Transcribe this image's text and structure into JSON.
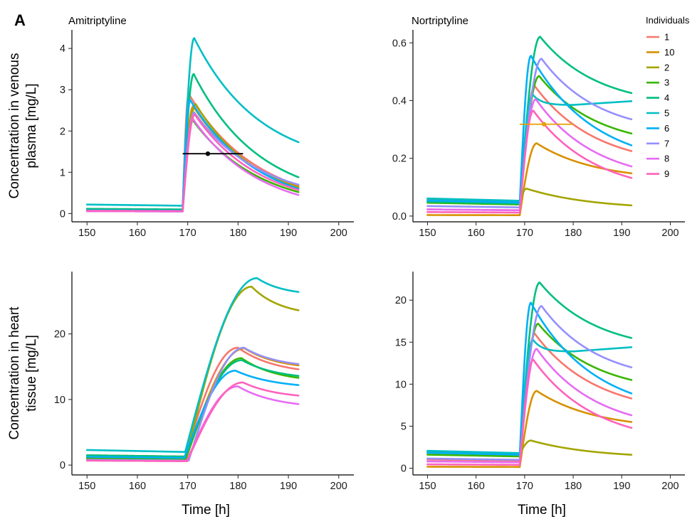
{
  "panel_label": "A",
  "legend": {
    "title": "Individuals",
    "entries": [
      {
        "label": "1",
        "color": "#F8766D"
      },
      {
        "label": "10",
        "color": "#D89000"
      },
      {
        "label": "2",
        "color": "#A3A500"
      },
      {
        "label": "3",
        "color": "#39B600"
      },
      {
        "label": "4",
        "color": "#00BF7D"
      },
      {
        "label": "5",
        "color": "#00BFC4"
      },
      {
        "label": "6",
        "color": "#00B0F6"
      },
      {
        "label": "7",
        "color": "#9590FF"
      },
      {
        "label": "8",
        "color": "#E76BF3"
      },
      {
        "label": "9",
        "color": "#FF62BC"
      }
    ]
  },
  "chart_data": [
    {
      "type": "line",
      "title": "Amitriptyline",
      "xlabel": "",
      "ylabel": "Concentration in venous\nplasma [mg/L]",
      "xlim": [
        147,
        203
      ],
      "ylim": [
        -0.2,
        4.45
      ],
      "xticks": [
        150,
        160,
        170,
        180,
        190,
        200
      ],
      "yticks": [
        0,
        1,
        2,
        3,
        4
      ],
      "curve": {
        "t_start": 150,
        "t_end": 192,
        "t_dose": 169
      },
      "series": [
        {
          "name": "1",
          "color": "#F8766D",
          "base": 0.08,
          "tmax": 170.2,
          "cmax": 2.9,
          "cend": 0.68
        },
        {
          "name": "10",
          "color": "#D89000",
          "base": 0.06,
          "tmax": 171.1,
          "cmax": 2.6,
          "cend": 0.65
        },
        {
          "name": "2",
          "color": "#A3A500",
          "base": 0.07,
          "tmax": 171.6,
          "cmax": 2.65,
          "cend": 0.62
        },
        {
          "name": "3",
          "color": "#39B600",
          "base": 0.06,
          "tmax": 170.9,
          "cmax": 2.28,
          "cend": 0.52
        },
        {
          "name": "4",
          "color": "#00BF7D",
          "base": 0.1,
          "tmax": 171.2,
          "cmax": 3.38,
          "cend": 0.88
        },
        {
          "name": "5",
          "color": "#00BFC4",
          "base": 0.19,
          "tmax": 171.3,
          "cmax": 4.25,
          "cend": 1.73
        },
        {
          "name": "6",
          "color": "#00B0F6",
          "base": 0.07,
          "tmax": 170.5,
          "cmax": 2.75,
          "cend": 0.6
        },
        {
          "name": "7",
          "color": "#9590FF",
          "base": 0.05,
          "tmax": 171.3,
          "cmax": 2.45,
          "cend": 0.7
        },
        {
          "name": "8",
          "color": "#E76BF3",
          "base": 0.05,
          "tmax": 171.0,
          "cmax": 2.3,
          "cend": 0.45
        },
        {
          "name": "9",
          "color": "#FF62BC",
          "base": 0.06,
          "tmax": 171.4,
          "cmax": 2.4,
          "cend": 0.57
        }
      ],
      "observation": {
        "x": 174,
        "y": 1.45,
        "xmin": 169,
        "xmax": 181,
        "color": "#000000"
      }
    },
    {
      "type": "line",
      "title": "Nortriptyline",
      "xlabel": "",
      "ylabel": "",
      "xlim": [
        147,
        203
      ],
      "ylim": [
        -0.02,
        0.645
      ],
      "xticks": [
        150,
        160,
        170,
        180,
        190,
        200
      ],
      "yticks": [
        0.0,
        0.2,
        0.4,
        0.6
      ],
      "ytick_labels": [
        "0.0",
        "0.2",
        "0.4",
        "0.6"
      ],
      "curve": {
        "t_start": 150,
        "t_end": 192,
        "t_dose": 169
      },
      "series": [
        {
          "name": "1",
          "color": "#F8766D",
          "base": 0.02,
          "tmax": 172.1,
          "cmax": 0.45,
          "cend": 0.225
        },
        {
          "name": "10",
          "color": "#D89000",
          "base": 0.003,
          "tmax": 172.5,
          "cmax": 0.252,
          "cend": 0.148
        },
        {
          "name": "2",
          "color": "#A3A500",
          "base": 0.05,
          "tmax": 170.4,
          "cmax": 0.095,
          "cend": 0.037
        },
        {
          "name": "3",
          "color": "#39B600",
          "base": 0.04,
          "tmax": 173.0,
          "cmax": 0.485,
          "cend": 0.286
        },
        {
          "name": "4",
          "color": "#00BF7D",
          "base": 0.043,
          "tmax": 173.2,
          "cmax": 0.621,
          "cend": 0.426
        },
        {
          "name": "5",
          "color": "#00BFC4",
          "base": 0.053,
          "tmax": 171.7,
          "cmax": 0.42,
          "cend": 0.398,
          "trough": 0.385,
          "ttrough": 180
        },
        {
          "name": "6",
          "color": "#00B0F6",
          "base": 0.047,
          "tmax": 171.3,
          "cmax": 0.555,
          "cend": 0.245
        },
        {
          "name": "7",
          "color": "#9590FF",
          "base": 0.03,
          "tmax": 173.5,
          "cmax": 0.545,
          "cend": 0.335
        },
        {
          "name": "8",
          "color": "#E76BF3",
          "base": 0.02,
          "tmax": 172.3,
          "cmax": 0.405,
          "cend": 0.172
        },
        {
          "name": "9",
          "color": "#FF62BC",
          "base": 0.012,
          "tmax": 171.8,
          "cmax": 0.365,
          "cend": 0.132
        }
      ],
      "observation": {
        "x": 174,
        "y": 0.318,
        "xmin": 169,
        "xmax": 180,
        "color": "#E5A000"
      }
    },
    {
      "type": "line",
      "title": "",
      "xlabel": "Time [h]",
      "ylabel": "Concentration in heart\ntissue [mg/L]",
      "xlim": [
        147,
        203
      ],
      "ylim": [
        -1.5,
        29.5
      ],
      "xticks": [
        150,
        160,
        170,
        180,
        190,
        200
      ],
      "yticks": [
        0,
        10,
        20
      ],
      "curve": {
        "t_start": 150,
        "t_end": 192,
        "t_dose": 169
      },
      "series": [
        {
          "name": "1",
          "color": "#F8766D",
          "base": 0.9,
          "tmax": 180.0,
          "cmax": 17.9,
          "cend": 14.6,
          "lag": 0.3
        },
        {
          "name": "10",
          "color": "#D89000",
          "base": 0.8,
          "tmax": 181.3,
          "cmax": 17.8,
          "cend": 15.2,
          "lag": 0.6
        },
        {
          "name": "2",
          "color": "#A3A500",
          "base": 1.3,
          "tmax": 182.7,
          "cmax": 27.2,
          "cend": 23.6,
          "lag": 0.7
        },
        {
          "name": "3",
          "color": "#39B600",
          "base": 0.9,
          "tmax": 180.7,
          "cmax": 16.3,
          "cend": 13.3,
          "lag": 0.6
        },
        {
          "name": "4",
          "color": "#00BF7D",
          "base": 1.3,
          "tmax": 180.8,
          "cmax": 16.0,
          "cend": 13.6,
          "lag": 0.5
        },
        {
          "name": "5",
          "color": "#00BFC4",
          "base": 2.0,
          "tmax": 183.8,
          "cmax": 28.5,
          "cend": 26.4,
          "lag": 0.5
        },
        {
          "name": "6",
          "color": "#00B0F6",
          "base": 1.1,
          "tmax": 179.5,
          "cmax": 14.4,
          "cend": 12.2,
          "lag": 0.3
        },
        {
          "name": "7",
          "color": "#9590FF",
          "base": 0.7,
          "tmax": 181.2,
          "cmax": 17.9,
          "cend": 15.4,
          "lag": 1.2
        },
        {
          "name": "8",
          "color": "#E76BF3",
          "base": 0.6,
          "tmax": 180.0,
          "cmax": 12.0,
          "cend": 9.3,
          "lag": 0.8
        },
        {
          "name": "9",
          "color": "#FF62BC",
          "base": 0.6,
          "tmax": 181.0,
          "cmax": 12.6,
          "cend": 10.6,
          "lag": 0.9
        }
      ]
    },
    {
      "type": "line",
      "title": "",
      "xlabel": "Time [h]",
      "ylabel": "",
      "xlim": [
        147,
        203
      ],
      "ylim": [
        -0.8,
        23.4
      ],
      "xticks": [
        150,
        160,
        170,
        180,
        190,
        200
      ],
      "yticks": [
        0,
        5,
        10,
        15,
        20
      ],
      "curve": {
        "t_start": 150,
        "t_end": 192,
        "t_dose": 169
      },
      "series": [
        {
          "name": "1",
          "color": "#F8766D",
          "base": 0.9,
          "tmax": 172.1,
          "cmax": 16.0,
          "cend": 8.3
        },
        {
          "name": "10",
          "color": "#D89000",
          "base": 0.15,
          "tmax": 172.5,
          "cmax": 9.2,
          "cend": 5.5
        },
        {
          "name": "2",
          "color": "#A3A500",
          "base": 1.7,
          "tmax": 171.3,
          "cmax": 3.3,
          "cend": 1.6
        },
        {
          "name": "3",
          "color": "#39B600",
          "base": 1.4,
          "tmax": 172.8,
          "cmax": 17.2,
          "cend": 10.5
        },
        {
          "name": "4",
          "color": "#00BF7D",
          "base": 1.6,
          "tmax": 173.1,
          "cmax": 22.1,
          "cend": 15.5
        },
        {
          "name": "5",
          "color": "#00BFC4",
          "base": 1.8,
          "tmax": 171.7,
          "cmax": 15.3,
          "cend": 14.4,
          "trough": 13.9,
          "ttrough": 180
        },
        {
          "name": "6",
          "color": "#00B0F6",
          "base": 1.6,
          "tmax": 171.3,
          "cmax": 19.7,
          "cend": 8.9
        },
        {
          "name": "7",
          "color": "#9590FF",
          "base": 1.0,
          "tmax": 173.5,
          "cmax": 19.3,
          "cend": 12.0
        },
        {
          "name": "8",
          "color": "#E76BF3",
          "base": 0.7,
          "tmax": 172.5,
          "cmax": 14.2,
          "cend": 6.3
        },
        {
          "name": "9",
          "color": "#FF62BC",
          "base": 0.4,
          "tmax": 171.8,
          "cmax": 12.9,
          "cend": 4.8
        }
      ]
    }
  ]
}
